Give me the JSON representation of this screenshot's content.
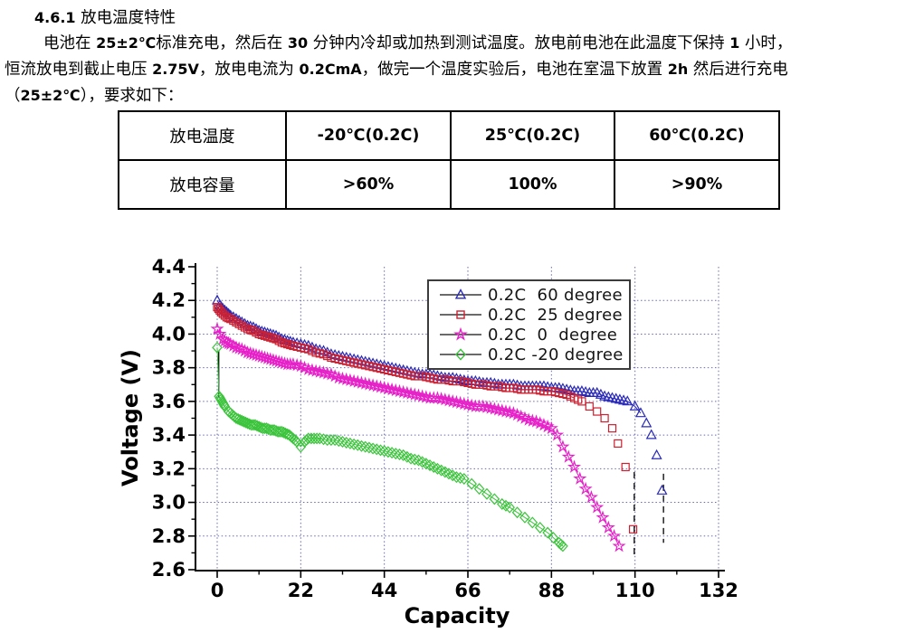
{
  "document": {
    "heading": [
      {
        "t": "4.6.1 ",
        "b": true
      },
      {
        "t": "放电温度特性",
        "b": false
      }
    ],
    "paragraph_lines": [
      [
        {
          "t": "电池在 ",
          "b": false
        },
        {
          "t": "25±2℃",
          "b": true
        },
        {
          "t": "标准充电，然后在 ",
          "b": false
        },
        {
          "t": "30 ",
          "b": true
        },
        {
          "t": "分钟内冷却或加热到测试温度。放电前电池在此温度下保持 ",
          "b": false
        },
        {
          "t": "1 ",
          "b": true
        },
        {
          "t": "小时，",
          "b": false
        }
      ],
      [
        {
          "t": "恒流放电到截止电压 ",
          "b": false
        },
        {
          "t": "2.75V",
          "b": true
        },
        {
          "t": "，放电电流为 ",
          "b": false
        },
        {
          "t": "0.2CmA",
          "b": true
        },
        {
          "t": "，做完一个温度实验后，电池在室温下放置 ",
          "b": false
        },
        {
          "t": "2h ",
          "b": true
        },
        {
          "t": "然后进行充电",
          "b": false
        }
      ],
      [
        {
          "t": "（",
          "b": false
        },
        {
          "t": "25±2℃",
          "b": true
        },
        {
          "t": "），要求如下：",
          "b": false
        }
      ]
    ]
  },
  "table": {
    "header_row": [
      "放电温度",
      "-20℃(0.2C)",
      "25℃(0.2C)",
      "60℃(0.2C)"
    ],
    "value_row": [
      "放电容量",
      ">60%",
      "100%",
      ">90%"
    ]
  },
  "chart_data": {
    "type": "line",
    "title": "",
    "xlabel": "Capacity",
    "ylabel": "Voltage (V)",
    "xlim": [
      -6,
      132
    ],
    "ylim": [
      2.6,
      4.4
    ],
    "xticks": [
      0,
      22,
      44,
      66,
      88,
      110,
      132
    ],
    "xtick_labels": [
      "0",
      "22",
      "44",
      "66",
      "88",
      "110",
      "132"
    ],
    "yticks": [
      2.6,
      2.8,
      3.0,
      3.2,
      3.4,
      3.6,
      3.8,
      4.0,
      4.2,
      4.4
    ],
    "ytick_labels": [
      "2.6",
      "2.8",
      "3.0",
      "3.2",
      "3.4",
      "3.6",
      "3.8",
      "4.0",
      "4.2",
      "4.4"
    ],
    "grid": "dotted-major",
    "grid_color": "#5a5aa8",
    "axis_color": "#000000",
    "legend_position": "top-center-inside",
    "series": [
      {
        "name": "0.2C  60 degree",
        "color": "#2a2ab8",
        "marker": "triangle",
        "line_until": 111.6,
        "drop_line": {
          "x": 117.5,
          "from": 3.17,
          "to": 2.76
        },
        "points": [
          [
            0,
            4.2
          ],
          [
            0.7,
            4.17
          ],
          [
            1.5,
            4.15
          ],
          [
            2.5,
            4.13
          ],
          [
            3.5,
            4.11
          ],
          [
            5,
            4.09
          ],
          [
            6.5,
            4.07
          ],
          [
            8,
            4.05
          ],
          [
            9.5,
            4.04
          ],
          [
            11,
            4.02
          ],
          [
            12.5,
            4.01
          ],
          [
            14,
            4.0
          ],
          [
            15.5,
            3.99
          ],
          [
            17,
            3.97
          ],
          [
            18.5,
            3.96
          ],
          [
            20,
            3.95
          ],
          [
            22,
            3.94
          ],
          [
            24,
            3.93
          ],
          [
            26,
            3.91
          ],
          [
            28,
            3.9
          ],
          [
            30,
            3.88
          ],
          [
            32,
            3.87
          ],
          [
            34,
            3.86
          ],
          [
            36,
            3.85
          ],
          [
            38,
            3.84
          ],
          [
            40,
            3.83
          ],
          [
            42,
            3.82
          ],
          [
            44,
            3.81
          ],
          [
            46,
            3.8
          ],
          [
            48,
            3.79
          ],
          [
            50,
            3.78
          ],
          [
            52,
            3.77
          ],
          [
            54,
            3.76
          ],
          [
            56,
            3.76
          ],
          [
            58,
            3.75
          ],
          [
            60,
            3.74
          ],
          [
            62,
            3.74
          ],
          [
            64,
            3.73
          ],
          [
            66,
            3.72
          ],
          [
            68,
            3.72
          ],
          [
            70,
            3.71
          ],
          [
            72,
            3.71
          ],
          [
            74,
            3.7
          ],
          [
            76,
            3.7
          ],
          [
            78,
            3.7
          ],
          [
            80,
            3.69
          ],
          [
            82,
            3.69
          ],
          [
            84,
            3.69
          ],
          [
            86,
            3.69
          ],
          [
            88,
            3.68
          ],
          [
            90,
            3.68
          ],
          [
            92,
            3.67
          ],
          [
            94,
            3.66
          ],
          [
            96,
            3.66
          ],
          [
            98,
            3.65
          ],
          [
            100,
            3.65
          ],
          [
            102,
            3.63
          ],
          [
            104,
            3.62
          ],
          [
            106,
            3.61
          ],
          [
            108,
            3.6
          ],
          [
            110,
            3.57
          ],
          [
            111.5,
            3.53
          ],
          [
            113,
            3.47
          ],
          [
            114.3,
            3.4
          ],
          [
            115.7,
            3.28
          ],
          [
            117.1,
            3.07
          ]
        ]
      },
      {
        "name": "0.2C  25 degree",
        "color": "#cc2030",
        "marker": "square",
        "line_until": 95,
        "drop_line": {
          "x": 109.8,
          "from": 3.18,
          "to": 2.68
        },
        "points": [
          [
            0,
            4.16
          ],
          [
            0.7,
            4.14
          ],
          [
            1.5,
            4.12
          ],
          [
            2.5,
            4.1
          ],
          [
            3.5,
            4.09
          ],
          [
            5,
            4.07
          ],
          [
            6.5,
            4.05
          ],
          [
            8,
            4.03
          ],
          [
            9.5,
            4.02
          ],
          [
            11,
            4.0
          ],
          [
            12.5,
            3.99
          ],
          [
            14,
            3.98
          ],
          [
            15.5,
            3.97
          ],
          [
            17,
            3.95
          ],
          [
            18.5,
            3.94
          ],
          [
            20,
            3.93
          ],
          [
            22,
            3.92
          ],
          [
            24,
            3.91
          ],
          [
            26,
            3.89
          ],
          [
            28,
            3.88
          ],
          [
            30,
            3.86
          ],
          [
            32,
            3.85
          ],
          [
            34,
            3.84
          ],
          [
            36,
            3.83
          ],
          [
            38,
            3.82
          ],
          [
            40,
            3.81
          ],
          [
            42,
            3.8
          ],
          [
            44,
            3.79
          ],
          [
            46,
            3.78
          ],
          [
            48,
            3.77
          ],
          [
            50,
            3.76
          ],
          [
            52,
            3.75
          ],
          [
            54,
            3.75
          ],
          [
            56,
            3.74
          ],
          [
            58,
            3.73
          ],
          [
            60,
            3.73
          ],
          [
            62,
            3.72
          ],
          [
            64,
            3.72
          ],
          [
            66,
            3.71
          ],
          [
            68,
            3.7
          ],
          [
            70,
            3.7
          ],
          [
            72,
            3.69
          ],
          [
            74,
            3.69
          ],
          [
            76,
            3.68
          ],
          [
            78,
            3.68
          ],
          [
            80,
            3.67
          ],
          [
            82,
            3.67
          ],
          [
            84,
            3.67
          ],
          [
            86,
            3.66
          ],
          [
            88,
            3.66
          ],
          [
            90,
            3.65
          ],
          [
            92,
            3.64
          ],
          [
            94,
            3.62
          ],
          [
            96,
            3.6
          ],
          [
            98,
            3.57
          ],
          [
            100,
            3.54
          ],
          [
            102,
            3.5
          ],
          [
            104,
            3.44
          ],
          [
            105.5,
            3.35
          ],
          [
            107.5,
            3.21
          ],
          [
            109.5,
            2.84
          ]
        ]
      },
      {
        "name": "0.2C  0  degree",
        "color": "#e620c8",
        "marker": "star",
        "points": [
          [
            0,
            4.03
          ],
          [
            0.7,
            4.0
          ],
          [
            1.5,
            3.97
          ],
          [
            2.5,
            3.95
          ],
          [
            3.5,
            3.94
          ],
          [
            5,
            3.92
          ],
          [
            6.5,
            3.91
          ],
          [
            8,
            3.89
          ],
          [
            9.5,
            3.88
          ],
          [
            11,
            3.87
          ],
          [
            12.5,
            3.86
          ],
          [
            14,
            3.85
          ],
          [
            15.5,
            3.84
          ],
          [
            17,
            3.83
          ],
          [
            18.5,
            3.82
          ],
          [
            20,
            3.82
          ],
          [
            22,
            3.81
          ],
          [
            24,
            3.79
          ],
          [
            26,
            3.78
          ],
          [
            28,
            3.77
          ],
          [
            30,
            3.76
          ],
          [
            32,
            3.74
          ],
          [
            34,
            3.73
          ],
          [
            36,
            3.72
          ],
          [
            38,
            3.71
          ],
          [
            40,
            3.7
          ],
          [
            42,
            3.69
          ],
          [
            44,
            3.68
          ],
          [
            46,
            3.67
          ],
          [
            48,
            3.66
          ],
          [
            50,
            3.65
          ],
          [
            52,
            3.64
          ],
          [
            54,
            3.63
          ],
          [
            56,
            3.62
          ],
          [
            58,
            3.62
          ],
          [
            60,
            3.61
          ],
          [
            62,
            3.6
          ],
          [
            64,
            3.59
          ],
          [
            66,
            3.58
          ],
          [
            68,
            3.57
          ],
          [
            70,
            3.57
          ],
          [
            72,
            3.56
          ],
          [
            74,
            3.55
          ],
          [
            76,
            3.54
          ],
          [
            78,
            3.53
          ],
          [
            80,
            3.51
          ],
          [
            82,
            3.49
          ],
          [
            84,
            3.48
          ],
          [
            86,
            3.46
          ],
          [
            88,
            3.44
          ],
          [
            89.5,
            3.4
          ],
          [
            91,
            3.33
          ],
          [
            92.5,
            3.27
          ],
          [
            94,
            3.21
          ],
          [
            95.5,
            3.14
          ],
          [
            97,
            3.08
          ],
          [
            98.5,
            3.03
          ],
          [
            100,
            2.97
          ],
          [
            101.5,
            2.91
          ],
          [
            103,
            2.85
          ],
          [
            104.5,
            2.8
          ],
          [
            105.8,
            2.74
          ]
        ]
      },
      {
        "name": "0.2C -20 degree",
        "color": "#3cc43c",
        "marker": "diamond",
        "start_line": {
          "x": 0.4,
          "from": 3.9,
          "to": 3.62
        },
        "points": [
          [
            0,
            3.92
          ],
          [
            0.5,
            3.63
          ],
          [
            1,
            3.61
          ],
          [
            1.5,
            3.59
          ],
          [
            2,
            3.57
          ],
          [
            3,
            3.54
          ],
          [
            4,
            3.52
          ],
          [
            5,
            3.5
          ],
          [
            6,
            3.49
          ],
          [
            7,
            3.48
          ],
          [
            8,
            3.47
          ],
          [
            9,
            3.46
          ],
          [
            10,
            3.46
          ],
          [
            11,
            3.45
          ],
          [
            12,
            3.44
          ],
          [
            13,
            3.44
          ],
          [
            14,
            3.43
          ],
          [
            15,
            3.43
          ],
          [
            16,
            3.42
          ],
          [
            17,
            3.42
          ],
          [
            18,
            3.41
          ],
          [
            19,
            3.4
          ],
          [
            20,
            3.38
          ],
          [
            21,
            3.36
          ],
          [
            22,
            3.33
          ],
          [
            23,
            3.36
          ],
          [
            24,
            3.38
          ],
          [
            25.5,
            3.38
          ],
          [
            27,
            3.38
          ],
          [
            29,
            3.37
          ],
          [
            31,
            3.37
          ],
          [
            33,
            3.36
          ],
          [
            35,
            3.35
          ],
          [
            37,
            3.34
          ],
          [
            39,
            3.33
          ],
          [
            41,
            3.32
          ],
          [
            43,
            3.31
          ],
          [
            45,
            3.3
          ],
          [
            47,
            3.29
          ],
          [
            49,
            3.28
          ],
          [
            51,
            3.26
          ],
          [
            53,
            3.25
          ],
          [
            55,
            3.23
          ],
          [
            57,
            3.21
          ],
          [
            59,
            3.19
          ],
          [
            61,
            3.17
          ],
          [
            63,
            3.15
          ],
          [
            65,
            3.14
          ],
          [
            67,
            3.11
          ],
          [
            69,
            3.08
          ],
          [
            71,
            3.05
          ],
          [
            73,
            3.02
          ],
          [
            75,
            2.99
          ],
          [
            77,
            2.97
          ],
          [
            79,
            2.94
          ],
          [
            81,
            2.91
          ],
          [
            83,
            2.88
          ],
          [
            85,
            2.85
          ],
          [
            87,
            2.82
          ],
          [
            88.5,
            2.79
          ],
          [
            90,
            2.76
          ],
          [
            91,
            2.74
          ]
        ]
      }
    ]
  }
}
